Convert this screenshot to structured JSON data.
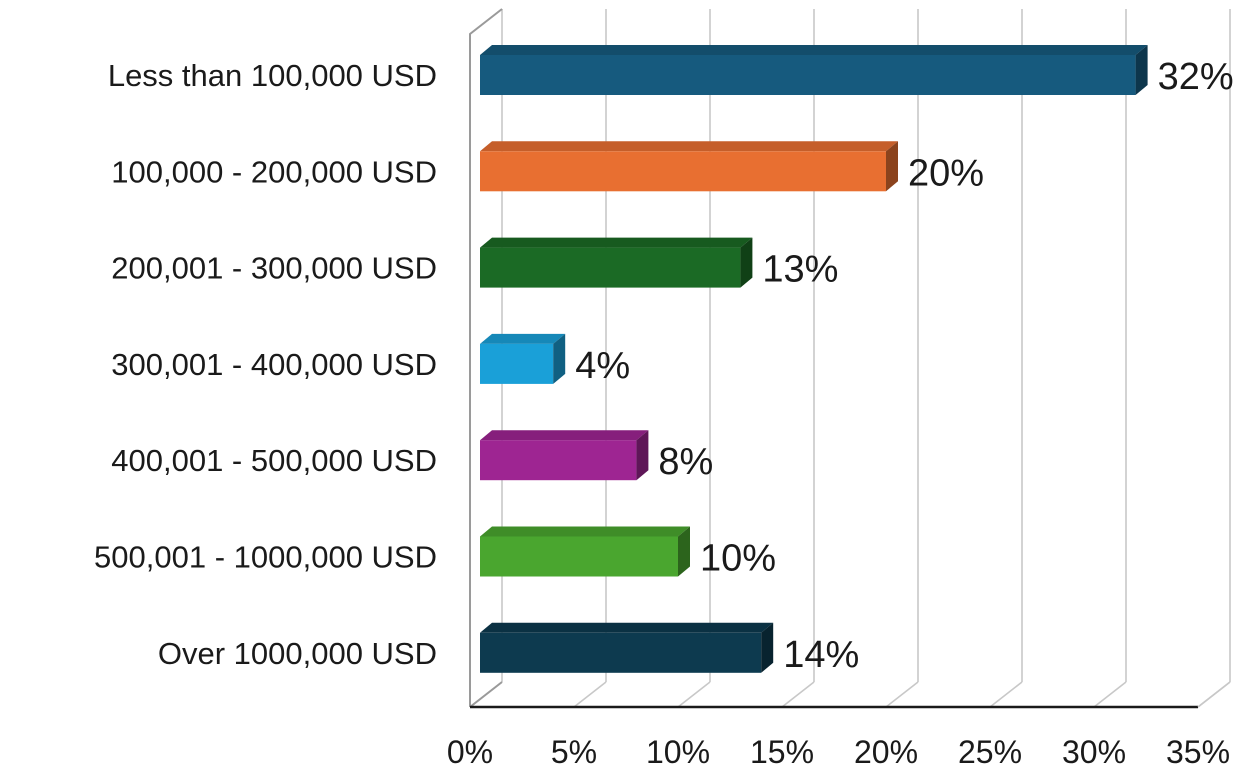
{
  "chart_data": {
    "type": "bar",
    "orientation": "horizontal",
    "style": "3d",
    "categories": [
      "Less than 100,000 USD",
      "100,000 - 200,000 USD",
      "200,001 - 300,000 USD",
      "300,001 - 400,000 USD",
      "400,001 - 500,000 USD",
      "500,001 - 1000,000 USD",
      "Over 1000,000 USD"
    ],
    "values": [
      32,
      20,
      13,
      4,
      8,
      10,
      14
    ],
    "data_labels": [
      "32%",
      "20%",
      "13%",
      "4%",
      "8%",
      "10%",
      "14%"
    ],
    "colors": [
      "#165a7e",
      "#e86f31",
      "#1b6a25",
      "#1aa0d8",
      "#9e2592",
      "#4aa62f",
      "#0d3a4f"
    ],
    "title": "",
    "xlabel": "",
    "ylabel": "",
    "xlim": [
      0,
      35
    ],
    "x_ticks": [
      "0%",
      "5%",
      "10%",
      "15%",
      "20%",
      "25%",
      "30%",
      "35%"
    ],
    "grid": true,
    "legend": "none"
  }
}
